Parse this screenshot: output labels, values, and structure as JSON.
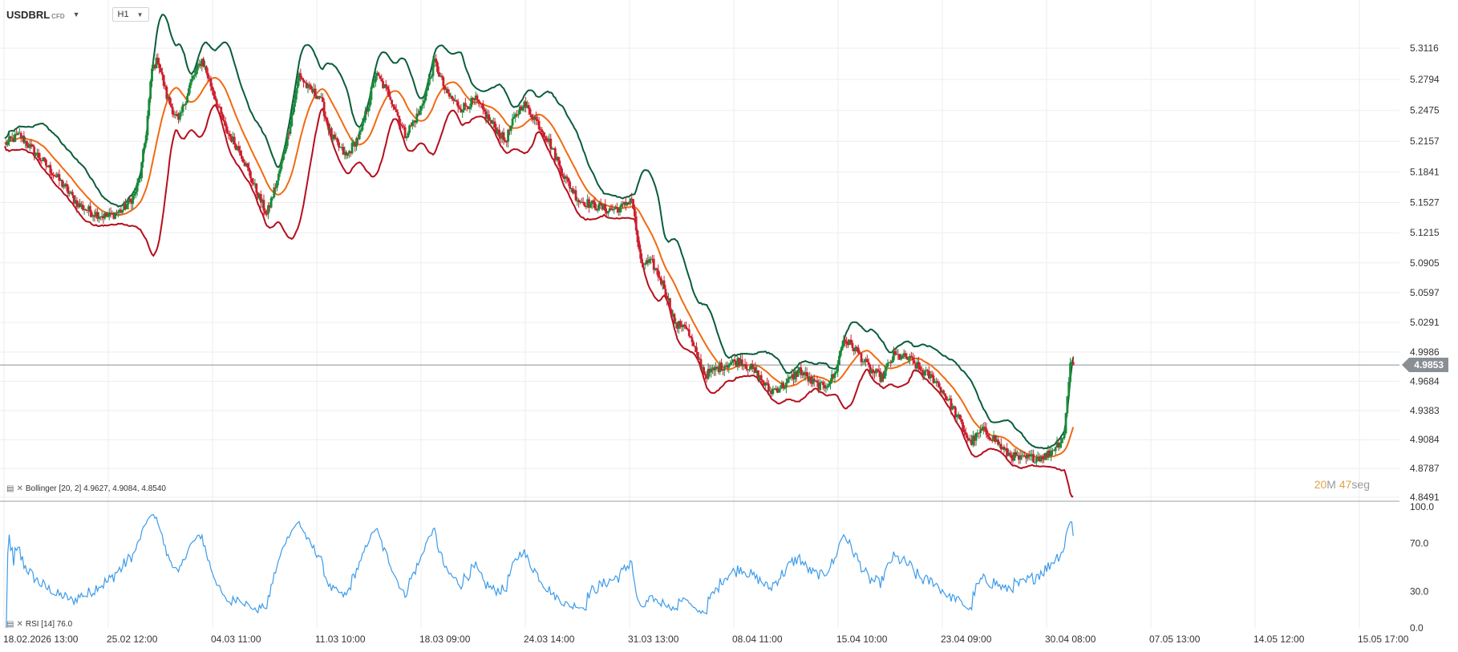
{
  "toolbar": {
    "symbol": "USDBRL",
    "symbol_type": "CFD",
    "timeframe": "H1"
  },
  "indicators": {
    "bollinger_label": "Bollinger [20, 2] 4.9627, 4.9084, 4.8540",
    "rsi_label": "RSI [14] 76.0"
  },
  "countdown": {
    "minutes": "20",
    "minutes_unit": "M",
    "seconds": "47",
    "seconds_unit": "seg"
  },
  "current_price": "4.9853",
  "colors": {
    "up_candle": "#1a8a3a",
    "down_candle": "#cc1f2f",
    "upper_band": "#0b5d3a",
    "middle_band": "#f26a12",
    "lower_band": "#b40f1d",
    "rsi_line": "#3d9be9",
    "countdown": "#e0a44a",
    "price_tag_bg": "#8a8f94"
  },
  "chart_data": [
    {
      "type": "candlestick",
      "instrument": "USDBRL",
      "interval": "H1",
      "y_ticks": [
        "5.3116",
        "5.2794",
        "5.2475",
        "5.2157",
        "5.1841",
        "5.1527",
        "5.1215",
        "5.0905",
        "5.0597",
        "5.0291",
        "4.9986",
        "4.9684",
        "4.9383",
        "4.9084",
        "4.8787",
        "4.8491"
      ],
      "x_ticks": [
        "18.02.2026 13:00",
        "25.02 12:00",
        "04.03 11:00",
        "11.03 10:00",
        "18.03 09:00",
        "24.03 14:00",
        "31.03 13:00",
        "08.04 11:00",
        "15.04 10:00",
        "23.04 09:00",
        "30.04 08:00",
        "07.05 13:00",
        "14.05 12:00",
        "15.05 17:00"
      ],
      "ylim": [
        4.8491,
        5.334
      ],
      "close_series": [
        [
          0,
          5.213
        ],
        [
          10,
          5.222
        ],
        [
          20,
          5.205
        ],
        [
          30,
          5.188
        ],
        [
          40,
          5.17
        ],
        [
          50,
          5.15
        ],
        [
          60,
          5.142
        ],
        [
          70,
          5.138
        ],
        [
          80,
          5.145
        ],
        [
          88,
          5.16
        ],
        [
          92,
          5.18
        ],
        [
          96,
          5.225
        ],
        [
          100,
          5.29
        ],
        [
          104,
          5.3
        ],
        [
          110,
          5.262
        ],
        [
          118,
          5.235
        ],
        [
          126,
          5.275
        ],
        [
          134,
          5.3
        ],
        [
          142,
          5.265
        ],
        [
          150,
          5.228
        ],
        [
          160,
          5.205
        ],
        [
          170,
          5.168
        ],
        [
          178,
          5.14
        ],
        [
          186,
          5.18
        ],
        [
          194,
          5.235
        ],
        [
          200,
          5.285
        ],
        [
          206,
          5.27
        ],
        [
          214,
          5.262
        ],
        [
          222,
          5.22
        ],
        [
          232,
          5.2
        ],
        [
          242,
          5.225
        ],
        [
          252,
          5.285
        ],
        [
          262,
          5.262
        ],
        [
          272,
          5.222
        ],
        [
          282,
          5.246
        ],
        [
          292,
          5.298
        ],
        [
          300,
          5.265
        ],
        [
          310,
          5.25
        ],
        [
          320,
          5.258
        ],
        [
          330,
          5.236
        ],
        [
          340,
          5.216
        ],
        [
          346,
          5.238
        ],
        [
          352,
          5.255
        ],
        [
          360,
          5.24
        ],
        [
          370,
          5.215
        ],
        [
          380,
          5.18
        ],
        [
          390,
          5.155
        ],
        [
          400,
          5.15
        ],
        [
          410,
          5.145
        ],
        [
          420,
          5.148
        ],
        [
          426,
          5.158
        ],
        [
          432,
          5.09
        ],
        [
          440,
          5.09
        ],
        [
          448,
          5.066
        ],
        [
          456,
          5.025
        ],
        [
          462,
          5.028
        ],
        [
          468,
          5.003
        ],
        [
          476,
          4.975
        ],
        [
          484,
          4.982
        ],
        [
          492,
          4.987
        ],
        [
          500,
          4.99
        ],
        [
          510,
          4.978
        ],
        [
          520,
          4.958
        ],
        [
          530,
          4.965
        ],
        [
          540,
          4.98
        ],
        [
          548,
          4.968
        ],
        [
          556,
          4.962
        ],
        [
          564,
          4.975
        ],
        [
          570,
          5.012
        ],
        [
          578,
          5.002
        ],
        [
          588,
          4.98
        ],
        [
          596,
          4.972
        ],
        [
          604,
          4.995
        ],
        [
          614,
          4.992
        ],
        [
          624,
          4.978
        ],
        [
          632,
          4.97
        ],
        [
          640,
          4.952
        ],
        [
          648,
          4.93
        ],
        [
          656,
          4.905
        ],
        [
          664,
          4.918
        ],
        [
          672,
          4.91
        ],
        [
          680,
          4.895
        ],
        [
          690,
          4.888
        ],
        [
          700,
          4.89
        ],
        [
          708,
          4.892
        ],
        [
          716,
          4.905
        ],
        [
          720,
          4.915
        ],
        [
          724,
          4.99
        ],
        [
          726,
          4.9853
        ]
      ],
      "bollinger": {
        "period": 20,
        "stddev": 2,
        "upper": 4.9627,
        "middle": 4.9084,
        "lower": 4.854
      },
      "current_price": 4.9853
    },
    {
      "type": "line",
      "name": "RSI [14]",
      "ylim": [
        0,
        100
      ],
      "y_ticks": [
        "100.0",
        "70.0",
        "30.0",
        "0.0"
      ],
      "last_value": 76.0
    }
  ]
}
